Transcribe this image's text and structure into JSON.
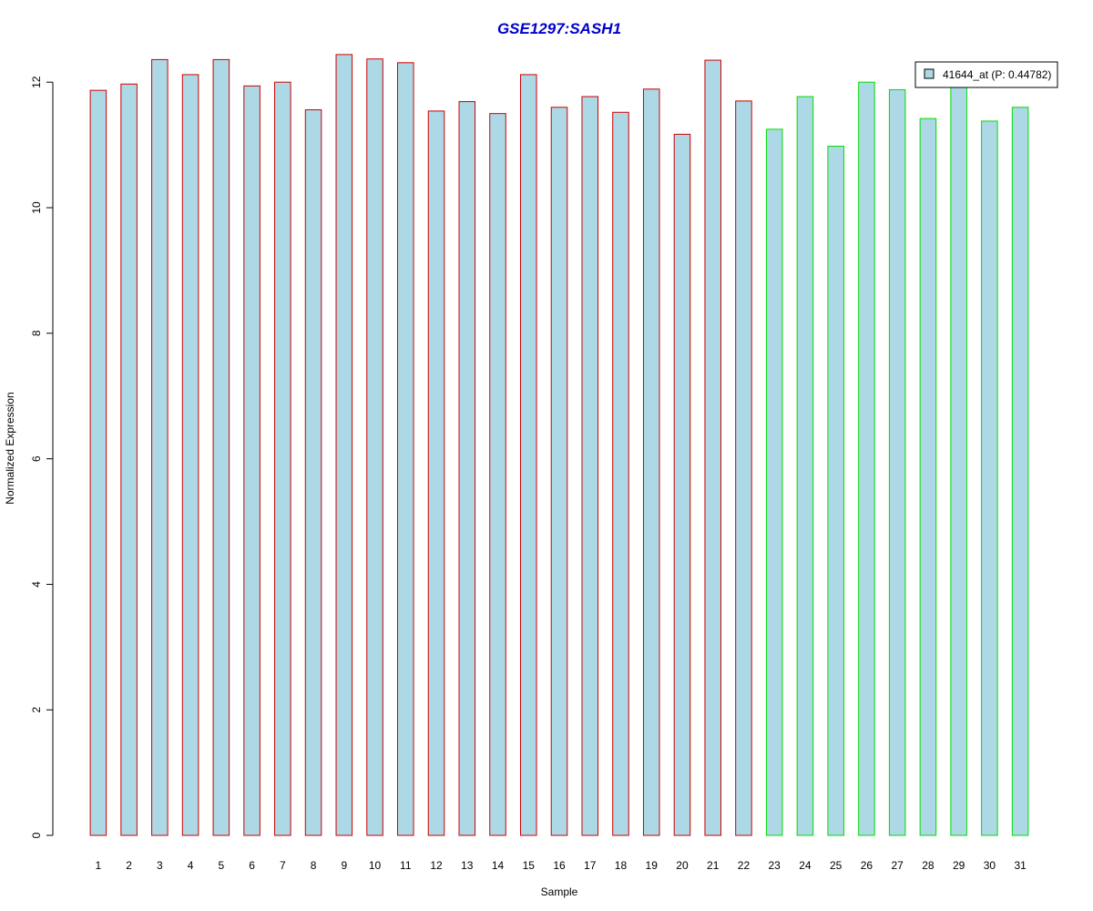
{
  "chart_data": {
    "type": "bar",
    "title": "GSE1297:SASH1",
    "xlabel": "Sample",
    "ylabel": "Normalized Expression",
    "ylim": [
      0,
      12.5
    ],
    "yticks": [
      0,
      2,
      4,
      6,
      8,
      10,
      12
    ],
    "categories": [
      "1",
      "2",
      "3",
      "4",
      "5",
      "6",
      "7",
      "8",
      "9",
      "10",
      "11",
      "12",
      "13",
      "14",
      "15",
      "16",
      "17",
      "18",
      "19",
      "20",
      "21",
      "22",
      "23",
      "24",
      "25",
      "26",
      "27",
      "28",
      "29",
      "30",
      "31"
    ],
    "values": [
      11.87,
      11.97,
      12.36,
      12.12,
      12.36,
      11.94,
      12.0,
      11.56,
      12.44,
      12.37,
      12.31,
      11.54,
      11.69,
      11.5,
      12.12,
      11.6,
      11.77,
      11.52,
      11.89,
      11.17,
      12.35,
      11.7,
      11.25,
      11.77,
      10.98,
      12.0,
      11.88,
      11.42,
      12.0,
      11.38,
      11.6
    ],
    "series": [
      {
        "name": "41644_at (P: 0.44782)"
      }
    ],
    "groups": [
      {
        "range": [
          1,
          22
        ],
        "border_color": "#cc0000"
      },
      {
        "range": [
          23,
          31
        ],
        "border_color": "#00dd00"
      }
    ],
    "bar_fill": "#add8e6",
    "title_color": "#0000cc",
    "legend_position": "top-right",
    "grid": false
  }
}
